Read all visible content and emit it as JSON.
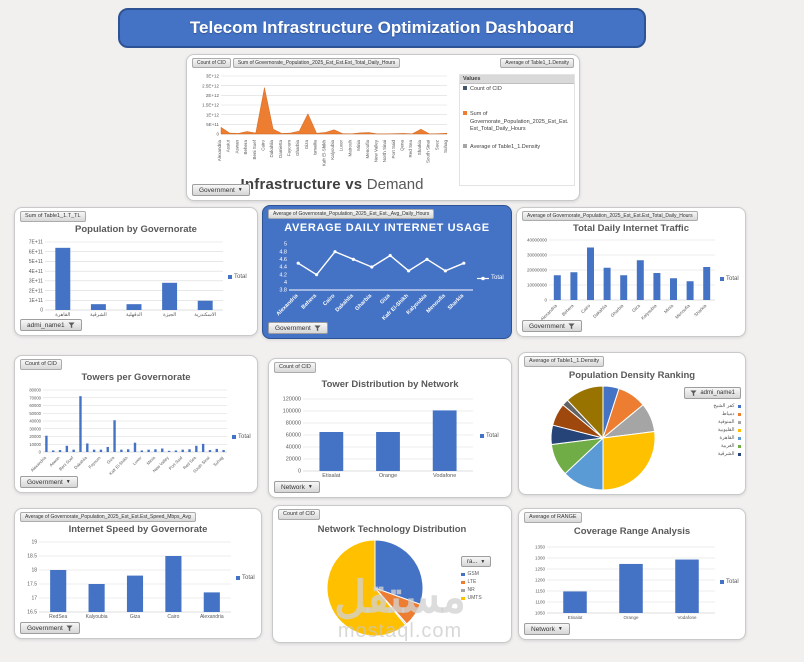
{
  "banner": {
    "title": "Telecom Infrastructure Optimization Dashboard"
  },
  "watermark": {
    "arabic": "مستقل",
    "domain": "mostaql.com"
  },
  "colors": {
    "accent_blue": "#4472C4",
    "orange": "#ED7D31",
    "gray": "#A5A5A5",
    "yellow": "#FFC000",
    "light_blue": "#5B9BD5",
    "green": "#70AD47",
    "navy": "#264478",
    "brown": "#9E480E",
    "dark_gray": "#636363",
    "olive": "#997300",
    "title_gray": "#595959",
    "banner_border": "#2E5395"
  },
  "chart_data": [
    {
      "id": "infrastructure-vs-demand",
      "type": "area",
      "title_bold": "Infrastructure vs",
      "title_light": "Demand",
      "buttons": [
        "Count of CID",
        "Sum of Governorate_Population_2025_Est_Est.Est_Total_Daily_Hours",
        "Average of Table1_1.Density"
      ],
      "filter": "Government",
      "categories": [
        "Alexandria",
        "Assiut",
        "Aswan",
        "Behera",
        "Beni Suef",
        "Cairo",
        "Dakahlia",
        "Damietta",
        "Fayoum",
        "Gharbia",
        "Giza",
        "Ismailia",
        "Kafr El-Shikh",
        "Kalyoubia",
        "Luxor",
        "Matrouh",
        "Minia",
        "Menoufia",
        "New Valley",
        "North Sinai",
        "Port Said",
        "Qena",
        "Red Sea",
        "Sharkia",
        "South Sinai",
        "Suez",
        "Suhag"
      ],
      "values": [
        350000000000.0,
        50000000000.0,
        30000000000.0,
        130000000000.0,
        50000000000.0,
        2400000000000.0,
        250000000000.0,
        30000000000.0,
        50000000000.0,
        150000000000.0,
        1050000000000.0,
        40000000000.0,
        80000000000.0,
        220000000000.0,
        20000000000.0,
        10000000000.0,
        60000000000.0,
        80000000000.0,
        5000000000.0,
        5000000000.0,
        20000000000.0,
        30000000000.0,
        10000000000.0,
        250000000000.0,
        5000000000.0,
        20000000000.0,
        40000000000.0
      ],
      "ylim": [
        0,
        3000000000000.0
      ],
      "yticks": [
        "0",
        "5E+11",
        "1E+12",
        "1.5E+12",
        "2E+12",
        "2.5E+12",
        "3E+12"
      ],
      "color": "#ED7D31",
      "legend_header": "Values",
      "legend_items": [
        {
          "label": "Count of CID",
          "color": "#44546A"
        },
        {
          "label": "Sum of Governorate_Population_2025_Est_Est.Est_Total_Daily_Hours",
          "color": "#ED7D31"
        },
        {
          "label": "Average of Table1_1.Density",
          "color": "#A5A5A5"
        }
      ]
    },
    {
      "id": "population-by-governorate",
      "type": "bar",
      "title": "Population by Governorate",
      "buttons": [
        "Sum of Table1_1.T_TL"
      ],
      "filter": "admi_name1",
      "legend": "Total",
      "categories": [
        "القاهرة",
        "الشرقية",
        "الدقهلية",
        "الجيزة",
        "الاسكندرية"
      ],
      "values": [
        640000000000.0,
        60000000000.0,
        60000000000.0,
        280000000000.0,
        95000000000.0
      ],
      "ylim": [
        0,
        700000000000.0
      ],
      "yticks": [
        "0",
        "1E+11",
        "2E+11",
        "3E+11",
        "4E+11",
        "5E+11",
        "6E+11",
        "7E+11"
      ],
      "color": "#4472C4"
    },
    {
      "id": "average-daily-internet-usage",
      "type": "line",
      "title": "AVERAGE DAILY INTERNET USAGE",
      "buttons": [
        "Average of Governorate_Population_2025_Est_Est._Avg_Daily_Hours"
      ],
      "filter": "Government",
      "legend": "Total",
      "categories": [
        "Alexandria",
        "Behera",
        "Cairo",
        "Dakahlia",
        "Gharbia",
        "Giza",
        "Kafr El-Shikh",
        "Kalyoubia",
        "Menoufia",
        "Sharkia"
      ],
      "values": [
        4.5,
        4.2,
        4.8,
        4.6,
        4.4,
        4.7,
        4.3,
        4.6,
        4.3,
        4.5
      ],
      "ylim": [
        3.8,
        5
      ],
      "yticks": [
        "3.8",
        "4",
        "4.2",
        "4.4",
        "4.6",
        "4.8",
        "5"
      ],
      "color": "#FFFFFF"
    },
    {
      "id": "total-daily-internet-traffic",
      "type": "bar",
      "title": "Total Daily Internet Traffic",
      "buttons": [
        "Average of Governorate_Population_2025_Est_Est.Est_Total_Daily_Hours"
      ],
      "filter": "Government",
      "legend": "Total",
      "categories": [
        "Alexandria",
        "Behera",
        "Cairo",
        "Dakahlia",
        "Gharbia",
        "Giza",
        "Kalyoubia",
        "Minia",
        "Menoufia",
        "Sharkia"
      ],
      "values": [
        16500000,
        18500000,
        35000000,
        21500000,
        16500000,
        26500000,
        18000000,
        14500000,
        12500000,
        22000000
      ],
      "ylim": [
        0,
        40000000
      ],
      "yticks": [
        "0",
        "10000000",
        "20000000",
        "30000000",
        "40000000"
      ],
      "color": "#4472C4"
    },
    {
      "id": "towers-per-governorate",
      "type": "bar",
      "title": "Towers per Governorate",
      "buttons": [
        "Count of CID"
      ],
      "filter": "Government",
      "legend": "Total",
      "categories": [
        "Alexandria",
        "Assiut",
        "Aswan",
        "Behera",
        "Beni Suef",
        "Cairo",
        "Dakahlia",
        "Damietta",
        "Fayoum",
        "Gharbia",
        "Giza",
        "Ismailia",
        "Kafr El-Shikh",
        "Kalyoubia",
        "Luxor",
        "Matrouh",
        "Minia",
        "Menoufia",
        "New Valley",
        "North Sinai",
        "Port Said",
        "Qena",
        "Red Sea",
        "Sharkia",
        "South Sinai",
        "Suez",
        "Suhag"
      ],
      "values": [
        21000,
        2000,
        2500,
        8000,
        3000,
        72000,
        11000,
        3000,
        3000,
        6500,
        41000,
        3000,
        3500,
        12000,
        2000,
        3000,
        3500,
        4500,
        1500,
        2000,
        3000,
        3500,
        8000,
        10500,
        2500,
        4000,
        2500
      ],
      "ylim": [
        0,
        80000
      ],
      "yticks": [
        "0",
        "10000",
        "20000",
        "30000",
        "40000",
        "50000",
        "60000",
        "70000",
        "80000"
      ],
      "color": "#4472C4"
    },
    {
      "id": "tower-distribution-by-network",
      "type": "bar",
      "title": "Tower Distribution by Network",
      "buttons": [
        "Count of CID"
      ],
      "filter": "Network",
      "legend": "Total",
      "categories": [
        "Etisalat",
        "Orange",
        "Vodafone"
      ],
      "values": [
        65000,
        65000,
        101000
      ],
      "ylim": [
        0,
        120000
      ],
      "yticks": [
        "0",
        "20000",
        "40000",
        "60000",
        "80000",
        "100000",
        "120000"
      ],
      "color": "#4472C4"
    },
    {
      "id": "population-density-ranking",
      "type": "pie",
      "title": "Population Density Ranking",
      "buttons": [
        "Average of Table1_1.Density"
      ],
      "legend_header": "admi_name1",
      "values": [
        5,
        9,
        9,
        27,
        13,
        10,
        6,
        7,
        2,
        12
      ],
      "colors": [
        "#4472C4",
        "#ED7D31",
        "#A5A5A5",
        "#FFC000",
        "#5B9BD5",
        "#70AD47",
        "#264478",
        "#9E480E",
        "#636363",
        "#997300"
      ],
      "legend_items": [
        {
          "label": "كفر الشيخ",
          "color": "#4472C4"
        },
        {
          "label": "دمياط",
          "color": "#ED7D31"
        },
        {
          "label": "المنوفية",
          "color": "#A5A5A5"
        },
        {
          "label": "القليوبية",
          "color": "#FFC000"
        },
        {
          "label": "القاهرة",
          "color": "#5B9BD5"
        },
        {
          "label": "الغربية",
          "color": "#70AD47"
        },
        {
          "label": "الشرقية",
          "color": "#264478"
        }
      ]
    },
    {
      "id": "internet-speed-by-governorate",
      "type": "bar",
      "title": "Internet Speed by Governorate",
      "buttons": [
        "Average of Governorate_Population_2025_Est_Est.Est_Speed_Mbps_Avg"
      ],
      "filter": "Government",
      "legend": "Total",
      "categories": [
        "RedSea",
        "Kalyoubia",
        "Giza",
        "Cairo",
        "Alexandria"
      ],
      "values": [
        18.0,
        17.5,
        17.8,
        18.5,
        17.2
      ],
      "ylim": [
        16.5,
        19
      ],
      "yticks": [
        "16.5",
        "17",
        "17.5",
        "18",
        "18.5",
        "19"
      ],
      "color": "#4472C4"
    },
    {
      "id": "network-technology-distribution",
      "type": "pie",
      "title": "Network Technology Distribution",
      "buttons": [
        "Count of CID"
      ],
      "legend_header": "ra...",
      "values": [
        30.5,
        8,
        0.5,
        61
      ],
      "colors": [
        "#4472C4",
        "#ED7D31",
        "#A5A5A5",
        "#FFC000"
      ],
      "legend_items": [
        {
          "label": "GSM",
          "color": "#4472C4"
        },
        {
          "label": "LTE",
          "color": "#ED7D31"
        },
        {
          "label": "NR",
          "color": "#A5A5A5"
        },
        {
          "label": "UMTS",
          "color": "#FFC000"
        }
      ]
    },
    {
      "id": "coverage-range-analysis",
      "type": "bar",
      "title": "Coverage Range Analysis",
      "buttons": [
        "Average of RANGE"
      ],
      "filter": "Network",
      "legend": "Total",
      "categories": [
        "Etisalat",
        "Orange",
        "Vodafone"
      ],
      "values": [
        1148,
        1273,
        1293
      ],
      "ylim": [
        1050,
        1350
      ],
      "yticks": [
        "1050",
        "1100",
        "1150",
        "1200",
        "1250",
        "1300",
        "1350"
      ],
      "color": "#4472C4"
    }
  ]
}
